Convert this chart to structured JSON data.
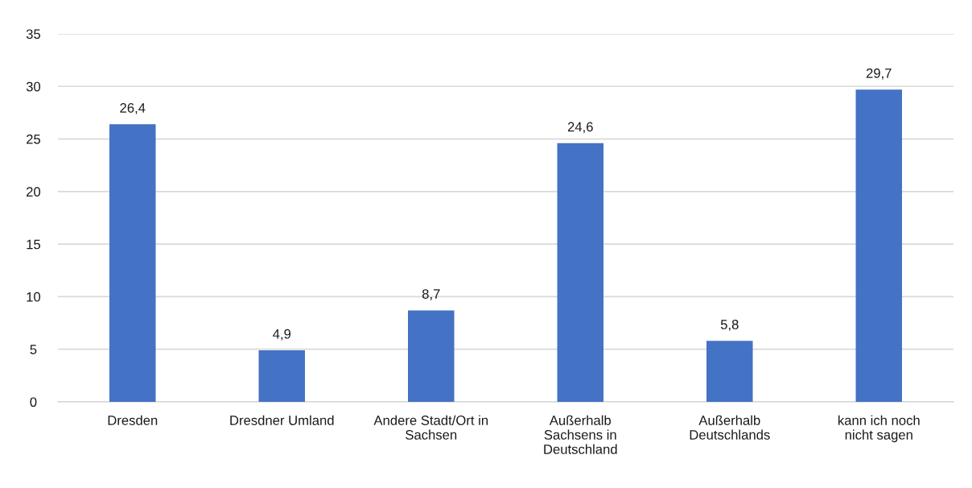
{
  "chart_data": {
    "type": "bar",
    "categories": [
      "Dresden",
      "Dresdner Umland",
      "Andere Stadt/Ort in\nSachsen",
      "Außerhalb\nSachsens in\nDeutschland",
      "Außerhalb\nDeutschlands",
      "kann ich noch\nnicht sagen"
    ],
    "values": [
      26.4,
      4.9,
      8.7,
      24.6,
      5.8,
      29.7
    ],
    "value_labels": [
      "26,4",
      "4,9",
      "8,7",
      "24,6",
      "5,8",
      "29,7"
    ],
    "color": "#4472c4",
    "ylim": [
      0,
      35
    ],
    "yticks": [
      0,
      5,
      10,
      15,
      20,
      25,
      30,
      35
    ],
    "grid": "y",
    "legend": false
  }
}
